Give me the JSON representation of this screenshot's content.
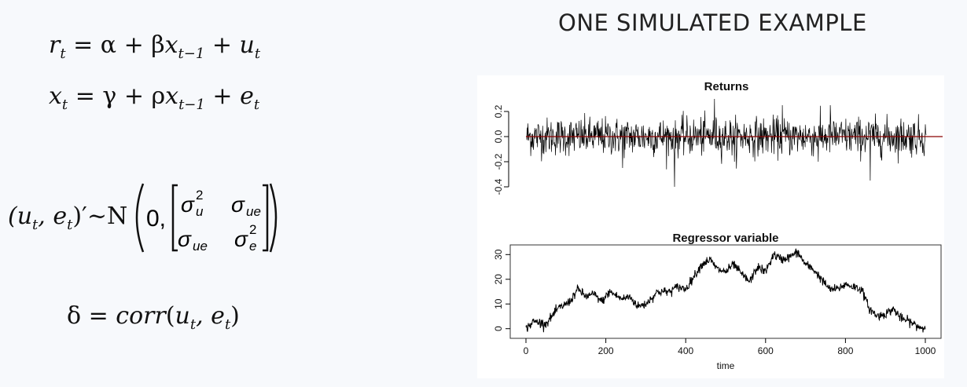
{
  "slide_title": "ONE SIMULATED EXAMPLE",
  "equations": {
    "eq1": {
      "lhs": "r",
      "lhs_sub": "t",
      "rhs_a": "= α + β",
      "x": "x",
      "x_sub": "t−1",
      "plus": "+",
      "u": "u",
      "u_sub": "t"
    },
    "eq2": {
      "lhs": "x",
      "lhs_sub": "t",
      "rhs_a": "= γ + ρ",
      "x": "x",
      "x_sub": "t−1",
      "plus": "+",
      "e": "e",
      "e_sub": "t"
    },
    "eq3": {
      "lhs": "(u",
      "sub1": "t",
      "mid": ", e",
      "sub2": "t",
      "rhs": ")′~N",
      "zero": "0,",
      "m11": "σ",
      "m11_sup": "2",
      "m11_sub": "u",
      "m12": "σ",
      "m12_sub": "ue",
      "m21": "σ",
      "m21_sub": "ue",
      "m22": "σ",
      "m22_sup": "2",
      "m22_sub": "e"
    },
    "eq4": {
      "lhs": "δ = ",
      "func": "corr",
      "open": "(u",
      "sub1": "t",
      "mid": ", e",
      "sub2": "t",
      "close": ")"
    }
  },
  "chart_data": [
    {
      "type": "line",
      "title": "Returns",
      "xlabel": "",
      "ylabel": "",
      "xlim": [
        0,
        1000
      ],
      "ylim": [
        -0.4,
        0.3
      ],
      "yticks": [
        "-0.4",
        "-0.2",
        "0.0",
        "0.2"
      ],
      "reference_line": {
        "y": 0.0,
        "color": "#8b0000"
      },
      "series": [
        {
          "description_points": [
            [
              0,
              0.05
            ],
            [
              50,
              -0.18
            ],
            [
              150,
              0.15
            ],
            [
              240,
              -0.25
            ],
            [
              350,
              0.2
            ],
            [
              370,
              -0.4
            ],
            [
              470,
              0.3
            ],
            [
              520,
              -0.2
            ],
            [
              640,
              0.25
            ],
            [
              730,
              -0.2
            ],
            [
              760,
              0.25
            ],
            [
              860,
              -0.35
            ],
            [
              920,
              0.2
            ],
            [
              1000,
              0.05
            ]
          ]
        }
      ],
      "color": "#000000"
    },
    {
      "type": "line",
      "title": "Regressor variable",
      "xlabel": "time",
      "ylabel": "",
      "xlim": [
        0,
        1000
      ],
      "ylim": [
        -2,
        32
      ],
      "xticks": [
        "0",
        "200",
        "400",
        "600",
        "800",
        "1000"
      ],
      "yticks": [
        "0",
        "10",
        "20",
        "30"
      ],
      "series": [
        {
          "x": [
            0,
            20,
            50,
            80,
            110,
            130,
            150,
            170,
            190,
            210,
            240,
            260,
            280,
            300,
            330,
            360,
            380,
            400,
            420,
            440,
            460,
            480,
            500,
            520,
            540,
            560,
            580,
            600,
            620,
            640,
            660,
            680,
            700,
            720,
            740,
            760,
            780,
            800,
            820,
            840,
            860,
            880,
            900,
            920,
            940,
            960,
            980,
            1000
          ],
          "values": [
            0,
            3,
            2,
            8,
            11,
            16,
            13,
            14,
            11,
            15,
            12,
            13,
            9,
            10,
            15,
            15,
            17,
            16,
            21,
            26,
            28,
            24,
            23,
            26,
            22,
            19,
            25,
            23,
            30,
            28,
            29,
            31,
            26,
            24,
            20,
            16,
            16,
            18,
            17,
            16,
            8,
            5,
            6,
            8,
            4,
            3,
            1,
            0
          ]
        }
      ],
      "color": "#000000"
    }
  ]
}
